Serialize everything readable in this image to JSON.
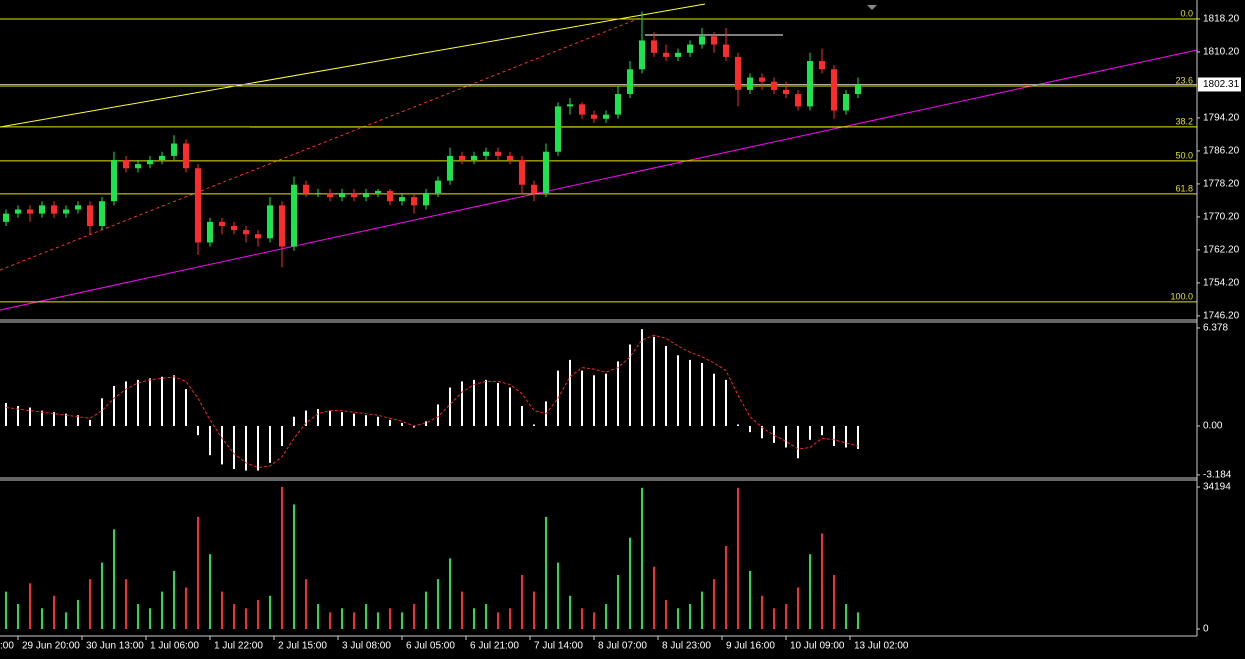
{
  "chart_data": {
    "type": "candlestick",
    "ylim": [
      1745.2,
      1822.8
    ],
    "yticks": [
      {
        "value": 1818.2,
        "label": "1818.20"
      },
      {
        "value": 1810.2,
        "label": "1810.20"
      },
      {
        "value": 1794.2,
        "label": "1794.20"
      },
      {
        "value": 1786.2,
        "label": "1786.20"
      },
      {
        "value": 1778.2,
        "label": "1778.20"
      },
      {
        "value": 1770.2,
        "label": "1770.20"
      },
      {
        "value": 1762.2,
        "label": "1762.20"
      },
      {
        "value": 1754.2,
        "label": "1754.20"
      },
      {
        "value": 1746.2,
        "label": "1746.20"
      }
    ],
    "current_price": 1802.31,
    "up_color": "#19e64b",
    "down_color": "#ff2a2a",
    "fib_levels": [
      {
        "level": {
          "value": 0,
          "label": "0.0"
        },
        "price": 1818.2
      },
      {
        "level": {
          "value": 23.6,
          "label": "23.6"
        },
        "price": 1801.96
      },
      {
        "level": {
          "value": 38.2,
          "label": "38.2"
        },
        "price": 1792.02
      },
      {
        "level": {
          "value": 50,
          "label": "50.0"
        },
        "price": 1783.78
      },
      {
        "level": {
          "value": 61.8,
          "label": "61.8"
        },
        "price": 1775.78
      },
      {
        "level": {
          "value": 100,
          "label": "100.0"
        },
        "price": 1749.59
      }
    ],
    "candles": [
      [
        1769,
        1772,
        1768,
        1771
      ],
      [
        1771,
        1773,
        1770,
        1772
      ],
      [
        1772,
        1773,
        1769,
        1771
      ],
      [
        1771,
        1774,
        1770,
        1773
      ],
      [
        1773,
        1774,
        1770,
        1771
      ],
      [
        1771,
        1773,
        1770,
        1772
      ],
      [
        1772,
        1774,
        1771,
        1773
      ],
      [
        1773,
        1774,
        1766,
        1768
      ],
      [
        1768,
        1775,
        1767,
        1774
      ],
      [
        1774,
        1786,
        1773,
        1784
      ],
      [
        1784,
        1785,
        1781,
        1782
      ],
      [
        1782,
        1784,
        1781,
        1783
      ],
      [
        1783,
        1785,
        1782,
        1784
      ],
      [
        1784,
        1786,
        1783,
        1785
      ],
      [
        1785,
        1790,
        1784,
        1788
      ],
      [
        1788,
        1789,
        1781,
        1782
      ],
      [
        1782,
        1783,
        1761,
        1764
      ],
      [
        1764,
        1770,
        1763,
        1769
      ],
      [
        1769,
        1770,
        1766,
        1768
      ],
      [
        1768,
        1769,
        1766,
        1767
      ],
      [
        1767,
        1768,
        1764,
        1766
      ],
      [
        1766,
        1767,
        1763,
        1765
      ],
      [
        1765,
        1775,
        1764,
        1773
      ],
      [
        1773,
        1774,
        1758,
        1763
      ],
      [
        1763,
        1780,
        1762,
        1778
      ],
      [
        1778,
        1779,
        1775,
        1776
      ],
      [
        1776,
        1777,
        1775,
        1776
      ],
      [
        1776,
        1777,
        1774,
        1775
      ],
      [
        1775,
        1777,
        1774,
        1776
      ],
      [
        1776,
        1777,
        1774,
        1775
      ],
      [
        1775,
        1777,
        1774,
        1776
      ],
      [
        1776,
        1777,
        1775,
        1776.5
      ],
      [
        1776.5,
        1777,
        1773,
        1774
      ],
      [
        1774,
        1776,
        1773,
        1775
      ],
      [
        1775,
        1776,
        1771,
        1773
      ],
      [
        1773,
        1777,
        1772,
        1776
      ],
      [
        1776,
        1780,
        1775,
        1779
      ],
      [
        1779,
        1787,
        1778,
        1785
      ],
      [
        1785,
        1786,
        1783,
        1784
      ],
      [
        1784,
        1786,
        1783,
        1785
      ],
      [
        1785,
        1787,
        1784,
        1786
      ],
      [
        1786,
        1787,
        1784,
        1785
      ],
      [
        1785,
        1786,
        1783,
        1784
      ],
      [
        1784,
        1785,
        1776,
        1778
      ],
      [
        1778,
        1779,
        1774,
        1776
      ],
      [
        1776,
        1788,
        1775,
        1786
      ],
      [
        1786,
        1798,
        1785,
        1797
      ],
      [
        1797,
        1799,
        1795,
        1797.5
      ],
      [
        1797.5,
        1798,
        1794,
        1795
      ],
      [
        1795,
        1796,
        1793,
        1794
      ],
      [
        1794,
        1796,
        1793,
        1795
      ],
      [
        1795,
        1802,
        1794,
        1800
      ],
      [
        1800,
        1808,
        1799,
        1806
      ],
      [
        1806,
        1820,
        1805,
        1813
      ],
      [
        1813,
        1815,
        1809,
        1810
      ],
      [
        1810,
        1812,
        1808,
        1809
      ],
      [
        1809,
        1811,
        1808,
        1810
      ],
      [
        1810,
        1813,
        1809,
        1812
      ],
      [
        1812,
        1816,
        1811,
        1814
      ],
      [
        1814,
        1815,
        1810,
        1812
      ],
      [
        1812,
        1816,
        1808,
        1809
      ],
      [
        1809,
        1810,
        1797,
        1801
      ],
      [
        1801,
        1805,
        1800,
        1804
      ],
      [
        1804,
        1805,
        1801,
        1803
      ],
      [
        1803,
        1804,
        1800,
        1801
      ],
      [
        1801,
        1803,
        1799,
        1800
      ],
      [
        1800,
        1801,
        1796,
        1797
      ],
      [
        1797,
        1810,
        1796,
        1808
      ],
      [
        1808,
        1811,
        1805,
        1806
      ],
      [
        1806,
        1807,
        1794,
        1796
      ],
      [
        1796,
        1801,
        1795,
        1800
      ],
      [
        1800,
        1804,
        1799,
        1802.31
      ]
    ],
    "x_labels": [
      ":00",
      "29 Jun 20:00",
      "30 Jun 13:00",
      "1 Jul 06:00",
      "1 Jul 22:00",
      "2 Jul 15:00",
      "3 Jul 08:00",
      "6 Jul 05:00",
      "6 Jul 21:00",
      "7 Jul 14:00",
      "8 Jul 07:00",
      "8 Jul 23:00",
      "9 Jul 16:00",
      "10 Jul 09:00",
      "13 Jul 02:00"
    ],
    "macd": {
      "ylim": [
        -3.32,
        6.7
      ],
      "yticks": [
        6.378,
        {
          "value": 0,
          "label": "0.00"
        },
        -3.184
      ],
      "hist_color": "#ffffff",
      "signal_color": "#ff2020",
      "histogram": [
        1.5,
        1.3,
        1.2,
        1.0,
        0.9,
        0.8,
        0.7,
        0.4,
        1.8,
        2.6,
        2.9,
        3.0,
        3.1,
        3.2,
        3.3,
        2.4,
        -0.6,
        -1.9,
        -2.5,
        -2.8,
        -2.9,
        -2.9,
        -2.4,
        -1.3,
        0.6,
        1.0,
        1.1,
        1.0,
        0.9,
        0.8,
        0.7,
        0.6,
        0.4,
        0.2,
        -0.1,
        0.3,
        1.4,
        2.5,
        2.9,
        3.0,
        3.0,
        2.8,
        2.5,
        1.3,
        0.1,
        1.6,
        3.6,
        4.3,
        3.6,
        3.3,
        3.4,
        4.2,
        5.3,
        6.3,
        5.8,
        5.2,
        4.6,
        4.3,
        4.1,
        3.4,
        3.0,
        0.1,
        -0.4,
        -0.8,
        -1.1,
        -1.4,
        -2.1,
        -0.9,
        -0.6,
        -1.3,
        -1.4,
        -1.5
      ],
      "signal": [
        1.2,
        1.1,
        1.0,
        0.9,
        0.8,
        0.7,
        0.6,
        0.5,
        1.0,
        1.8,
        2.4,
        2.8,
        3.0,
        3.1,
        3.2,
        2.9,
        1.8,
        0.4,
        -0.8,
        -1.8,
        -2.4,
        -2.7,
        -2.6,
        -2.0,
        -0.8,
        0.2,
        0.8,
        1.0,
        1.0,
        0.9,
        0.8,
        0.7,
        0.5,
        0.3,
        0.0,
        0.2,
        0.6,
        1.4,
        2.2,
        2.7,
        2.9,
        2.9,
        2.7,
        2.1,
        1.0,
        0.8,
        1.8,
        3.2,
        3.8,
        3.7,
        3.5,
        3.8,
        4.5,
        5.6,
        5.9,
        5.7,
        5.2,
        4.8,
        4.5,
        4.1,
        3.6,
        2.0,
        0.6,
        -0.1,
        -0.6,
        -1.0,
        -1.5,
        -1.4,
        -0.8,
        -0.9,
        -1.1,
        -1.3
      ]
    },
    "volume": {
      "ylim": [
        0,
        35880
      ],
      "yticks": [
        34194,
        0
      ],
      "values": [
        9000,
        6000,
        11000,
        5000,
        8000,
        4000,
        7000,
        12000,
        16000,
        24000,
        12000,
        6000,
        5000,
        9000,
        14000,
        10000,
        27000,
        18000,
        9000,
        6000,
        5000,
        7000,
        8000,
        34194,
        30000,
        12000,
        6000,
        4000,
        5000,
        4000,
        6000,
        4000,
        5000,
        4000,
        6000,
        9000,
        12000,
        17000,
        9000,
        5000,
        6000,
        4000,
        5000,
        13000,
        9000,
        27000,
        16000,
        8000,
        5000,
        4000,
        6000,
        13000,
        22000,
        34000,
        15000,
        7000,
        5000,
        6000,
        9000,
        12000,
        20000,
        34000,
        14000,
        8000,
        5000,
        6000,
        10000,
        18000,
        23000,
        13000,
        6000,
        4000
      ]
    }
  }
}
